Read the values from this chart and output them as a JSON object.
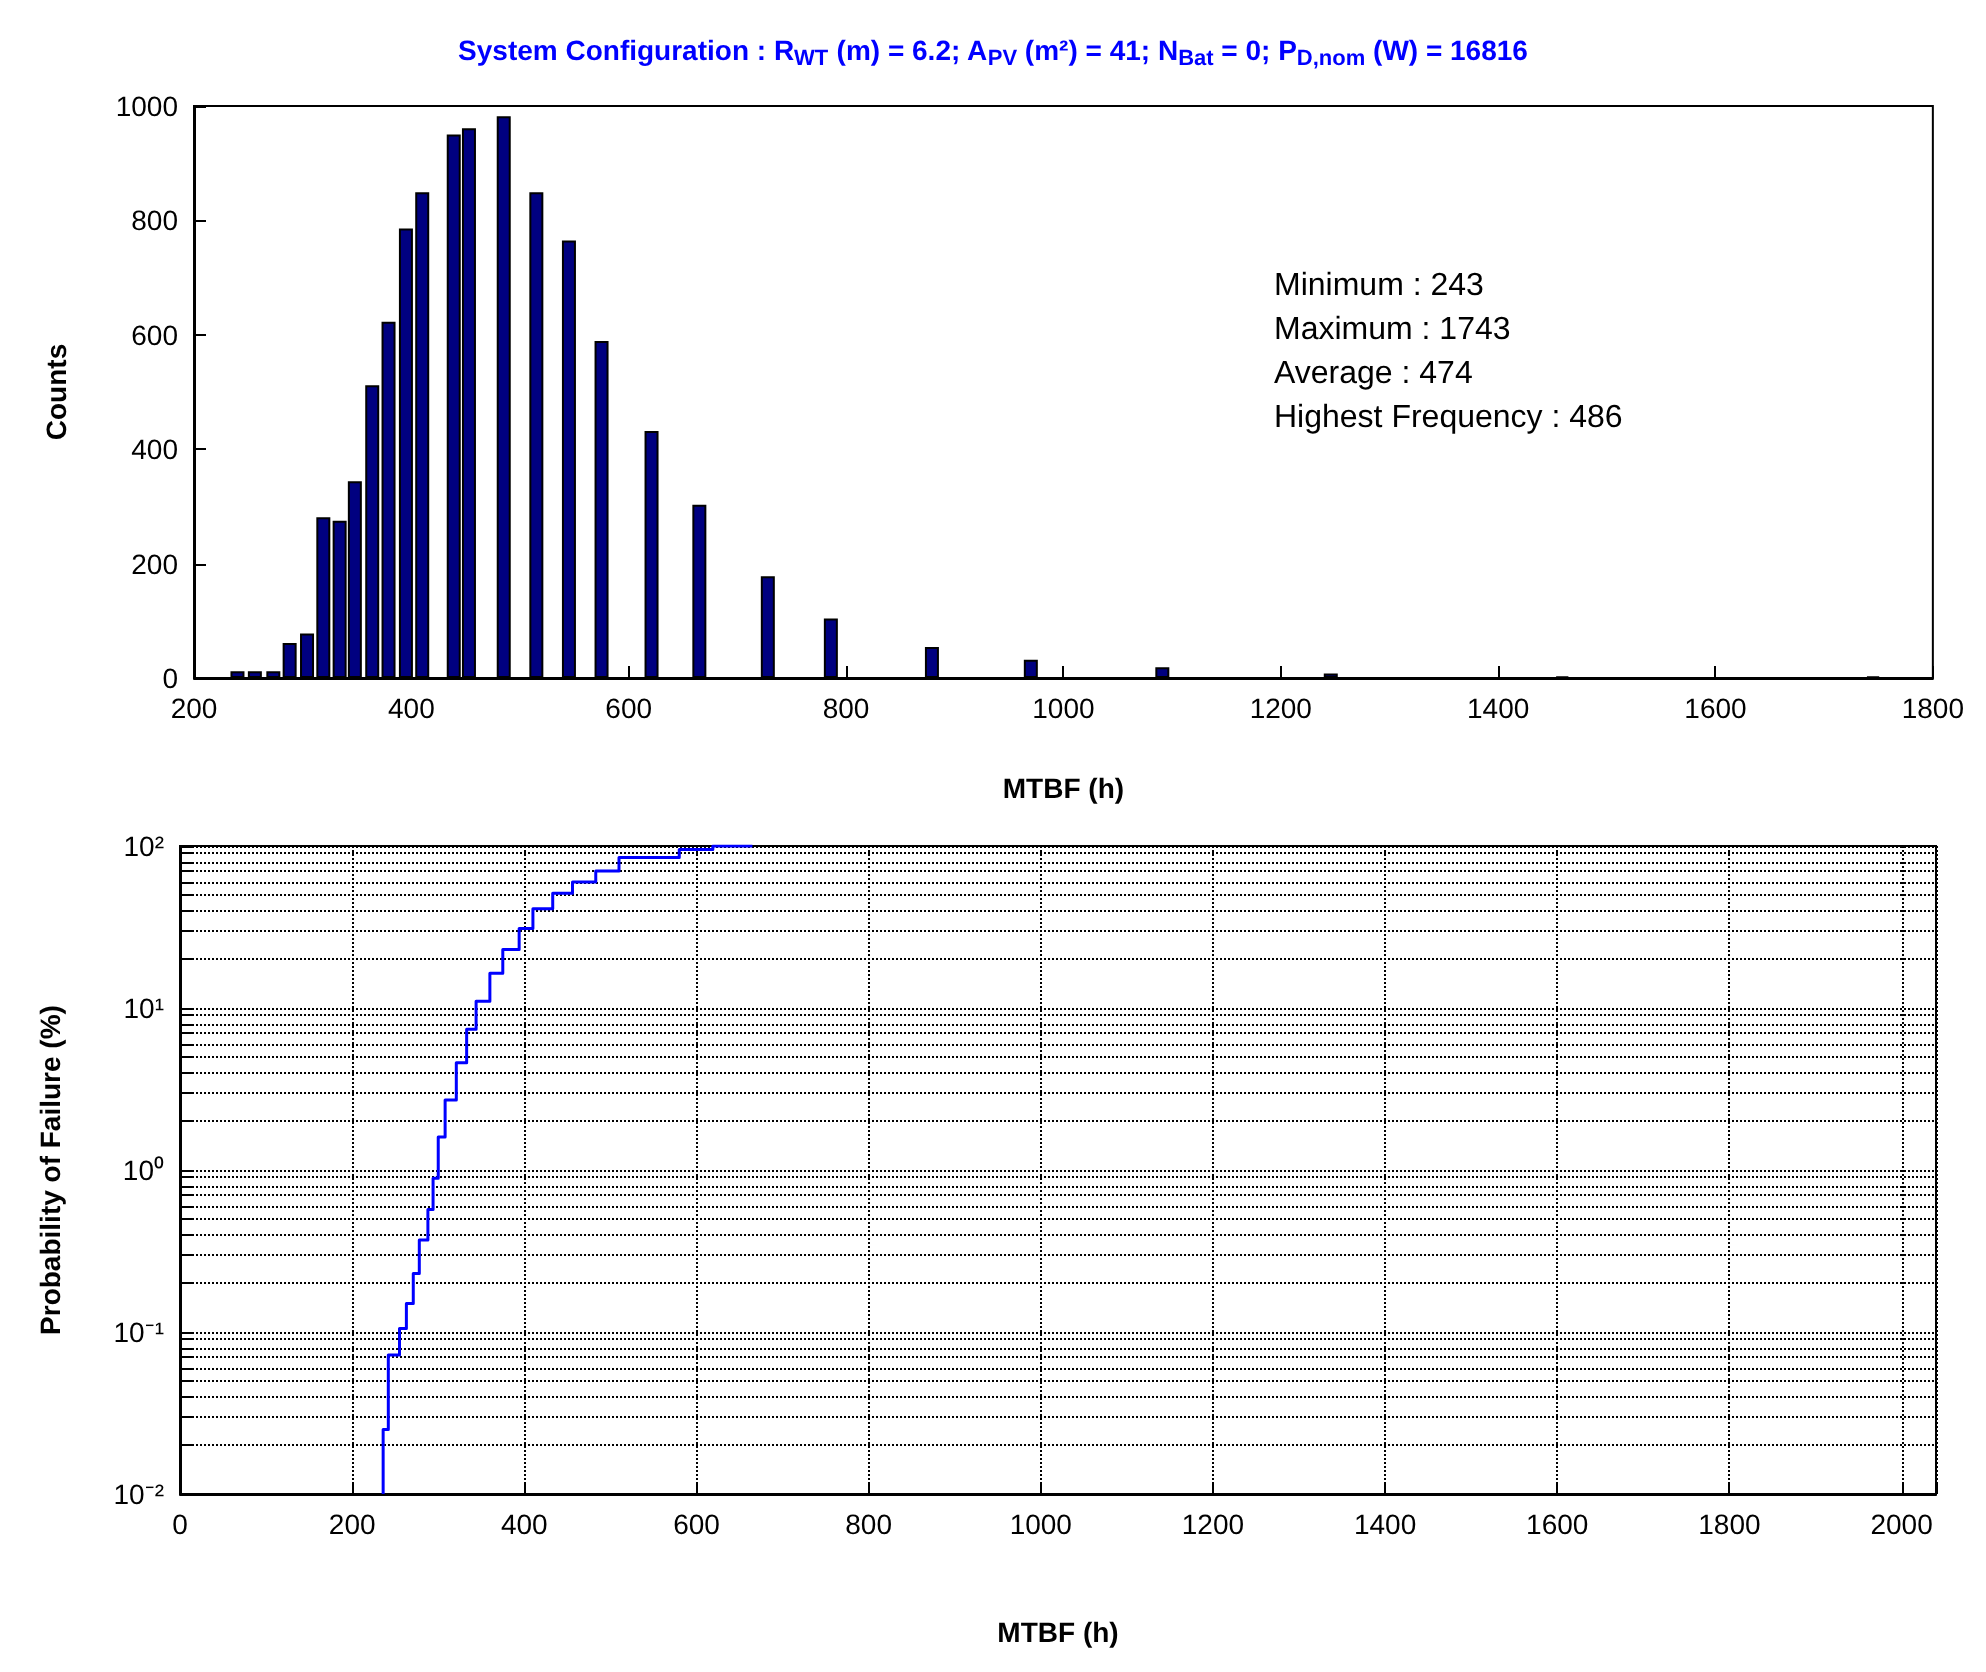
{
  "chart_data": [
    {
      "type": "bar",
      "title": "System Configuration : R$_{WT}$ (m) = 6.2; A$_{PV}$ (m²) = 41; N$_{Bat}$ = 0; P$_{D,nom}$ (W) = 16816",
      "xlabel": "MTBF (h)",
      "ylabel": "Counts",
      "x": [
        240,
        256,
        273,
        288,
        304,
        319,
        334,
        348,
        364,
        379,
        395,
        410,
        439,
        453,
        485,
        515,
        545,
        575,
        621,
        665,
        728,
        786,
        879,
        970,
        1091,
        1246,
        1459,
        1745
      ],
      "values": [
        12,
        12,
        12,
        61,
        78,
        281,
        275,
        344,
        512,
        623,
        786,
        849,
        950,
        961,
        982,
        849,
        765,
        589,
        432,
        303,
        178,
        104,
        54,
        32,
        19,
        8,
        3,
        3
      ],
      "color": "#000080",
      "xlim": [
        200,
        1800
      ],
      "xticks": [
        200,
        400,
        600,
        800,
        1000,
        1200,
        1400,
        1600,
        1800
      ],
      "ylim": [
        0,
        1000
      ],
      "yticks": [
        0,
        200,
        400,
        600,
        800,
        1000
      ],
      "annotations": [
        "Minimum : 243",
        "Maximum : 1743",
        "Average : 474",
        "Highest Frequency : 486"
      ]
    },
    {
      "type": "step",
      "xlabel": "MTBF (h)",
      "ylabel": "Probability of Failure (%)",
      "log": "y",
      "grid": true,
      "color": "#0000ff",
      "x": [
        236,
        236,
        242,
        255,
        263,
        271,
        278,
        288,
        294,
        300,
        308,
        321,
        333,
        344,
        360,
        375,
        394,
        410,
        433,
        456,
        483,
        510,
        580,
        619,
        665
      ],
      "values": [
        0.01,
        0.025,
        0.072,
        0.105,
        0.15,
        0.23,
        0.37,
        0.57,
        0.89,
        1.6,
        2.7,
        4.6,
        7.4,
        11,
        16.4,
        23,
        31,
        41,
        51,
        60,
        70,
        85,
        95,
        100,
        100
      ],
      "xlim": [
        0,
        2040
      ],
      "xticks": [
        0,
        200,
        400,
        600,
        800,
        1000,
        1200,
        1400,
        1600,
        1800,
        2000
      ],
      "ylim": [
        0.01,
        100
      ],
      "yticks": [
        {
          "value": 0.01,
          "label": "10⁻²"
        },
        {
          "value": 0.02,
          "label": null
        },
        {
          "value": 0.03,
          "label": null
        },
        {
          "value": 0.04,
          "label": null
        },
        {
          "value": 0.05,
          "label": null
        },
        {
          "value": 0.06,
          "label": null
        },
        {
          "value": 0.07,
          "label": null
        },
        {
          "value": 0.08,
          "label": null
        },
        {
          "value": 0.09,
          "label": null
        },
        {
          "value": 0.1,
          "label": "10⁻¹"
        },
        {
          "value": 0.2,
          "label": null
        },
        {
          "value": 0.3,
          "label": null
        },
        {
          "value": 0.4,
          "label": null
        },
        {
          "value": 0.5,
          "label": null
        },
        {
          "value": 0.6,
          "label": null
        },
        {
          "value": 0.7,
          "label": null
        },
        {
          "value": 0.8,
          "label": null
        },
        {
          "value": 0.9,
          "label": null
        },
        {
          "value": 1,
          "label": "10⁰"
        },
        {
          "value": 2,
          "label": null
        },
        {
          "value": 3,
          "label": null
        },
        {
          "value": 4,
          "label": null
        },
        {
          "value": 5,
          "label": null
        },
        {
          "value": 6,
          "label": null
        },
        {
          "value": 7,
          "label": null
        },
        {
          "value": 8,
          "label": null
        },
        {
          "value": 9,
          "label": null
        },
        {
          "value": 10,
          "label": "10¹"
        },
        {
          "value": 20,
          "label": null
        },
        {
          "value": 30,
          "label": null
        },
        {
          "value": 40,
          "label": null
        },
        {
          "value": 50,
          "label": null
        },
        {
          "value": 60,
          "label": null
        },
        {
          "value": 70,
          "label": null
        },
        {
          "value": 80,
          "label": null
        },
        {
          "value": 90,
          "label": null
        },
        {
          "value": 100,
          "label": "10²"
        }
      ]
    }
  ]
}
